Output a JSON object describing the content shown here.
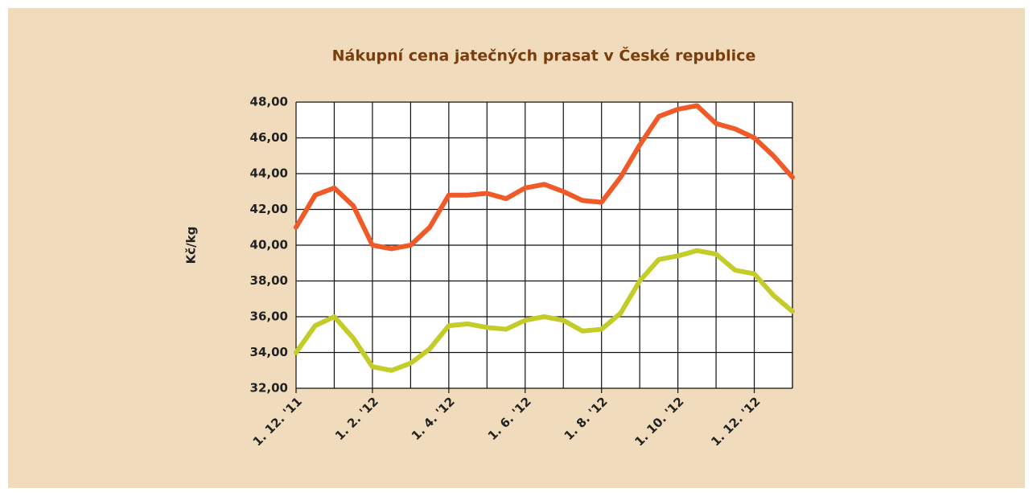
{
  "chart_data": {
    "type": "line",
    "title": "Nákupní cena jatečných prasat v České republice",
    "y_label": "Kč/kg",
    "categories": [
      "1. 12. '11",
      null,
      null,
      null,
      "1. 2. '12",
      null,
      null,
      null,
      "1. 4. '12",
      null,
      null,
      null,
      "1. 6. '12",
      null,
      null,
      null,
      "1. 8. '12",
      null,
      null,
      null,
      "1. 10. '12",
      null,
      null,
      null,
      "1. 12. '12",
      null,
      null
    ],
    "series": [
      {
        "color": "#f05a28",
        "values": [
          41.0,
          42.8,
          43.2,
          42.2,
          40.0,
          39.8,
          40.0,
          41.0,
          42.8,
          42.8,
          42.9,
          42.6,
          43.2,
          43.4,
          43.0,
          42.5,
          42.4,
          43.8,
          45.6,
          47.2,
          47.6,
          47.8,
          46.8,
          46.5,
          46.0,
          45.0,
          43.8
        ]
      },
      {
        "color": "#c4cc2a",
        "values": [
          34.0,
          35.5,
          36.0,
          34.8,
          33.2,
          33.0,
          33.4,
          34.2,
          35.5,
          35.6,
          35.4,
          35.3,
          35.8,
          36.0,
          35.8,
          35.2,
          35.3,
          36.2,
          38.0,
          39.2,
          39.4,
          39.7,
          39.5,
          38.6,
          38.4,
          37.2,
          36.3
        ]
      }
    ],
    "ylim": [
      32,
      48
    ],
    "yticks": [
      {
        "value": 32,
        "label": "32,00"
      },
      {
        "value": 34,
        "label": "34,00"
      },
      {
        "value": 36,
        "label": "36,00"
      },
      {
        "value": 38,
        "label": "38,00"
      },
      {
        "value": 40,
        "label": "40,00"
      },
      {
        "value": 42,
        "label": "42,00"
      },
      {
        "value": 44,
        "label": "44,00"
      },
      {
        "value": 46,
        "label": "46,00"
      },
      {
        "value": 48,
        "label": "48,00"
      }
    ],
    "grid": true
  }
}
